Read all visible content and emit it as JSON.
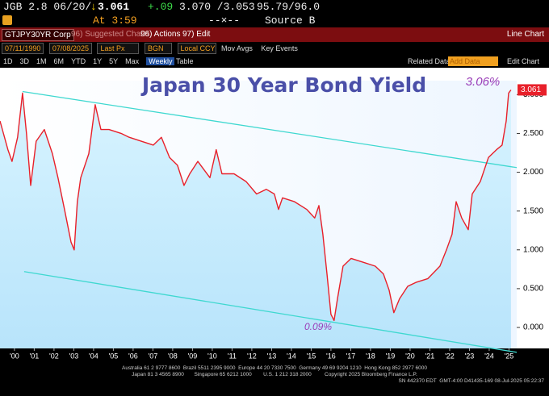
{
  "header": {
    "security": "JGB 2.8 06/20/",
    "last": "3.061",
    "change": "+.09",
    "bid_ask": "3.070 /3.053",
    "price": "95.79/96.0",
    "time": "At 3:59",
    "separator": "--×--",
    "source": "Source B"
  },
  "toolbar": {
    "security": "GTJPY30YR Corp",
    "suggested": "96) Suggested Charts",
    "actions": "96) Actions",
    "edit": "97) Edit",
    "chart_type": "Line Chart"
  },
  "controls": {
    "start": "07/11/1990",
    "end": "07/08/2025",
    "field": "Last Px",
    "pricing_source": "BGN",
    "currency": "Local CCY",
    "mov_avgs": "Mov Avgs",
    "key_events": "Key Events",
    "periods": [
      "1D",
      "3D",
      "1M",
      "6M",
      "YTD",
      "1Y",
      "5Y",
      "Max",
      "Weekly"
    ],
    "table": "Table",
    "related": "Related Data",
    "add": "Add Data",
    "edit_chart": "Edit Chart"
  },
  "chart_data": {
    "type": "line",
    "title": "Japan 30 Year Bond Yield",
    "color": "#e8202a",
    "x": [
      1999.27,
      1999.67,
      1999.88,
      2000.16,
      2000.41,
      2000.61,
      2000.82,
      2001.1,
      2001.51,
      2001.92,
      2002.2,
      2002.53,
      2002.86,
      2003.02,
      2003.18,
      2003.35,
      2003.76,
      2004.08,
      2004.37,
      2004.78,
      2005.39,
      2005.8,
      2006.41,
      2007.02,
      2007.43,
      2007.84,
      2008.24,
      2008.57,
      2008.86,
      2009.27,
      2009.88,
      2010.2,
      2010.49,
      2011.1,
      2011.71,
      2012.24,
      2012.73,
      2013.14,
      2013.35,
      2013.55,
      2014.16,
      2014.78,
      2015.18,
      2015.39,
      2015.59,
      2015.8,
      2016.0,
      2016.16,
      2016.33,
      2016.61,
      2017.02,
      2017.63,
      2018.24,
      2018.65,
      2018.94,
      2019.18,
      2019.47,
      2019.88,
      2020.29,
      2020.9,
      2021.51,
      2021.84,
      2022.12,
      2022.33,
      2022.61,
      2022.94,
      2023.14,
      2023.55,
      2023.96,
      2024.37,
      2024.65,
      2024.86,
      2024.98,
      2025.1
    ],
    "values": [
      2.66,
      2.29,
      2.14,
      2.45,
      3.02,
      2.5,
      1.83,
      2.4,
      2.55,
      2.24,
      1.93,
      1.52,
      1.1,
      1.0,
      1.62,
      1.93,
      2.24,
      2.87,
      2.55,
      2.55,
      2.5,
      2.45,
      2.4,
      2.35,
      2.45,
      2.19,
      2.09,
      1.83,
      1.98,
      2.14,
      1.93,
      2.29,
      1.98,
      1.98,
      1.88,
      1.72,
      1.78,
      1.72,
      1.52,
      1.67,
      1.62,
      1.52,
      1.41,
      1.57,
      1.2,
      0.69,
      0.17,
      0.09,
      0.37,
      0.79,
      0.89,
      0.84,
      0.79,
      0.69,
      0.48,
      0.19,
      0.37,
      0.53,
      0.58,
      0.63,
      0.79,
      1.0,
      1.2,
      1.62,
      1.41,
      1.26,
      1.72,
      1.88,
      2.19,
      2.29,
      2.35,
      2.66,
      3.02,
      3.06
    ],
    "channel_color": "#3fd8d0",
    "channel": [
      {
        "x": [
          2000.41,
          2025.39
        ],
        "values": [
          3.04,
          2.06
        ]
      },
      {
        "x": [
          2000.49,
          2025.39
        ],
        "values": [
          0.72,
          -0.32
        ]
      }
    ],
    "last_price": 3.061,
    "annotations": [
      "3.06%",
      "0.09%"
    ],
    "xlim": [
      1999.27,
      2025.39
    ],
    "ylim": [
      -0.27,
      3.18
    ],
    "xticks": [
      {
        "value": 2000,
        "label": "'00"
      },
      {
        "value": 2001,
        "label": "'01"
      },
      {
        "value": 2002,
        "label": "'02"
      },
      {
        "value": 2003,
        "label": "'03"
      },
      {
        "value": 2004,
        "label": "'04"
      },
      {
        "value": 2005,
        "label": "'05"
      },
      {
        "value": 2006,
        "label": "'06"
      },
      {
        "value": 2007,
        "label": "'07"
      },
      {
        "value": 2008,
        "label": "'08"
      },
      {
        "value": 2009,
        "label": "'09"
      },
      {
        "value": 2010,
        "label": "'10"
      },
      {
        "value": 2011,
        "label": "'11"
      },
      {
        "value": 2012,
        "label": "'12"
      },
      {
        "value": 2013,
        "label": "'13"
      },
      {
        "value": 2014,
        "label": "'14"
      },
      {
        "value": 2015,
        "label": "'15"
      },
      {
        "value": 2016,
        "label": "'16"
      },
      {
        "value": 2017,
        "label": "'17"
      },
      {
        "value": 2018,
        "label": "'18"
      },
      {
        "value": 2019,
        "label": "'19"
      },
      {
        "value": 2020,
        "label": "'20"
      },
      {
        "value": 2021,
        "label": "'21"
      },
      {
        "value": 2022,
        "label": "'22"
      },
      {
        "value": 2023,
        "label": "'23"
      },
      {
        "value": 2024,
        "label": "'24"
      },
      {
        "value": 2025,
        "label": "'25"
      }
    ],
    "yticks": [
      {
        "value": 0,
        "label": "0.000"
      },
      {
        "value": 0.5,
        "label": "0.500"
      },
      {
        "value": 1,
        "label": "1.000"
      },
      {
        "value": 1.5,
        "label": "1.500"
      },
      {
        "value": 2,
        "label": "2.000"
      },
      {
        "value": 2.5,
        "label": "2.500"
      },
      {
        "value": 3,
        "label": "3.000"
      }
    ]
  },
  "footer": {
    "lines": [
      "Australia 61 2 9777 8600  Brazil 5511 2395 9000  Europe 44 20 7330 7500  Germany 49 69 9204 1210  Hong Kong 852 2977 6000",
      "Japan 81 3 4565 8900       Singapore 65 6212 1000        U.S. 1 212 318 2000         Copyright 2025 Bloomberg Finance L.P.",
      "SN 442370 EDT  GMT-4:00 D41435-169 08-Jul-2025 05:22:37"
    ]
  }
}
